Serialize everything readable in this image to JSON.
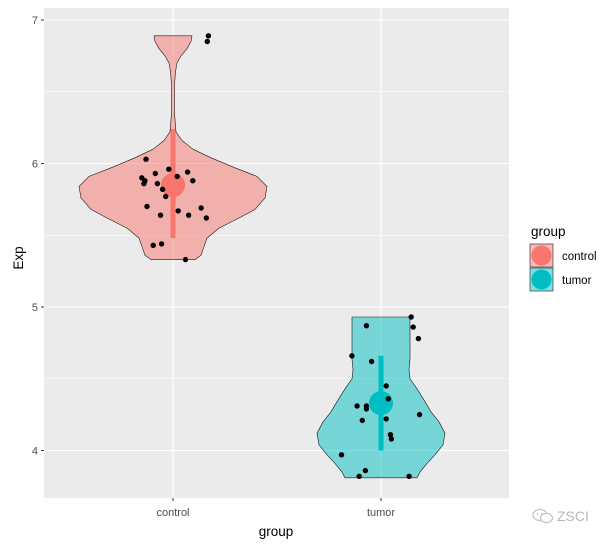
{
  "chart_data": {
    "type": "violin",
    "title": "",
    "xlabel": "group",
    "ylabel": "Exp",
    "categories": [
      "control",
      "tumor"
    ],
    "ylim": [
      3.67,
      7.08
    ],
    "yticks": [
      4,
      5,
      6,
      7
    ],
    "grid": true,
    "legend": {
      "title": "group",
      "position": "right",
      "entries": [
        {
          "label": "control",
          "color": "#F8766D"
        },
        {
          "label": "tumor",
          "color": "#00BFC4"
        }
      ]
    },
    "series": [
      {
        "name": "control",
        "color": "#F8766D",
        "mean": 5.85,
        "range": [
          5.48,
          6.24
        ],
        "violin_min": 5.33,
        "violin_max": 6.89,
        "violin_profile": [
          {
            "y": 5.33,
            "w": 22
          },
          {
            "y": 5.36,
            "w": 28
          },
          {
            "y": 5.42,
            "w": 31
          },
          {
            "y": 5.48,
            "w": 34
          },
          {
            "y": 5.55,
            "w": 46
          },
          {
            "y": 5.62,
            "w": 66
          },
          {
            "y": 5.68,
            "w": 82
          },
          {
            "y": 5.76,
            "w": 92
          },
          {
            "y": 5.84,
            "w": 94
          },
          {
            "y": 5.91,
            "w": 84
          },
          {
            "y": 5.97,
            "w": 62
          },
          {
            "y": 6.04,
            "w": 38
          },
          {
            "y": 6.1,
            "w": 20
          },
          {
            "y": 6.16,
            "w": 9
          },
          {
            "y": 6.22,
            "w": 3
          },
          {
            "y": 6.35,
            "w": 1.5
          },
          {
            "y": 6.55,
            "w": 1.5
          },
          {
            "y": 6.64,
            "w": 2.5
          },
          {
            "y": 6.7,
            "w": 4
          },
          {
            "y": 6.75,
            "w": 8
          },
          {
            "y": 6.8,
            "w": 14
          },
          {
            "y": 6.85,
            "w": 18
          },
          {
            "y": 6.89,
            "w": 19
          }
        ],
        "points": [
          [
            -0.3,
            5.9
          ],
          [
            -0.27,
            5.88
          ],
          [
            -0.28,
            5.86
          ],
          [
            -0.26,
            6.03
          ],
          [
            -0.25,
            5.7
          ],
          [
            -0.19,
            5.43
          ],
          [
            -0.17,
            5.93
          ],
          [
            -0.15,
            5.86
          ],
          [
            -0.12,
            5.64
          ],
          [
            -0.11,
            5.44
          ],
          [
            -0.1,
            5.82
          ],
          [
            -0.07,
            5.77
          ],
          [
            -0.04,
            5.96
          ],
          [
            0.04,
            5.91
          ],
          [
            0.05,
            5.67
          ],
          [
            0.12,
            5.33
          ],
          [
            0.14,
            5.94
          ],
          [
            0.15,
            5.64
          ],
          [
            0.19,
            5.88
          ],
          [
            0.27,
            5.69
          ],
          [
            0.32,
            5.62
          ],
          [
            0.33,
            6.85
          ],
          [
            0.34,
            6.89
          ]
        ]
      },
      {
        "name": "tumor",
        "color": "#00BFC4",
        "mean": 4.33,
        "range": [
          4.0,
          4.66
        ],
        "violin_min": 3.81,
        "violin_max": 4.93,
        "violin_profile": [
          {
            "y": 3.81,
            "w": 36
          },
          {
            "y": 3.85,
            "w": 39
          },
          {
            "y": 3.91,
            "w": 46
          },
          {
            "y": 3.97,
            "w": 54
          },
          {
            "y": 4.04,
            "w": 62
          },
          {
            "y": 4.12,
            "w": 64
          },
          {
            "y": 4.2,
            "w": 58
          },
          {
            "y": 4.27,
            "w": 50
          },
          {
            "y": 4.34,
            "w": 44
          },
          {
            "y": 4.43,
            "w": 36
          },
          {
            "y": 4.5,
            "w": 29
          },
          {
            "y": 4.56,
            "w": 28
          },
          {
            "y": 4.64,
            "w": 29
          },
          {
            "y": 4.72,
            "w": 29
          },
          {
            "y": 4.8,
            "w": 29
          },
          {
            "y": 4.87,
            "w": 29
          },
          {
            "y": 4.93,
            "w": 29
          }
        ],
        "points": [
          [
            -0.38,
            3.97
          ],
          [
            -0.28,
            4.66
          ],
          [
            -0.23,
            4.31
          ],
          [
            -0.21,
            3.82
          ],
          [
            -0.18,
            4.21
          ],
          [
            -0.15,
            3.86
          ],
          [
            -0.14,
            4.29
          ],
          [
            -0.14,
            4.31
          ],
          [
            -0.14,
            4.87
          ],
          [
            -0.09,
            4.62
          ],
          [
            0.05,
            4.22
          ],
          [
            0.05,
            4.45
          ],
          [
            0.07,
            4.36
          ],
          [
            0.09,
            4.11
          ],
          [
            0.1,
            4.08
          ],
          [
            0.27,
            3.82
          ],
          [
            0.29,
            4.93
          ],
          [
            0.31,
            4.86
          ],
          [
            0.36,
            4.78
          ],
          [
            0.37,
            4.25
          ]
        ]
      }
    ]
  },
  "watermark": {
    "text": "ZSCI",
    "icon": "wechat-icon"
  }
}
